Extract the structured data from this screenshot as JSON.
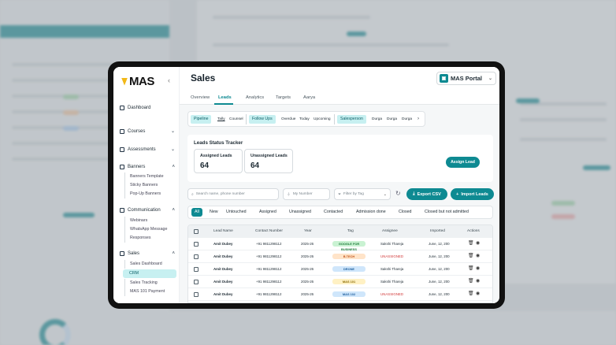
{
  "app": {
    "logo": "MAS",
    "collapse_icon": "chevron-left-icon",
    "page_title": "Sales",
    "portal_label": "MAS Portal"
  },
  "sidebar": {
    "dashboard": "Dashboard",
    "courses": "Courses",
    "assessments": "Assessments",
    "banners": "Banners",
    "banners_items": [
      "Banners Template",
      "Sticky Banners",
      "Pop-Up Banners"
    ],
    "communication": "Communication",
    "communication_items": [
      "Webinars",
      "WhatsApp Message",
      "Responses"
    ],
    "sales": "Sales",
    "sales_items": [
      "Sales Dashboard",
      "CRM",
      "Sales Tracking",
      "MAS 101 Payment"
    ],
    "active_item": "CRM"
  },
  "tabs": [
    "Overview",
    "Leads",
    "Analytics",
    "Targets",
    "Aarya"
  ],
  "active_tab": "Leads",
  "filters": {
    "pipeline": "Pipeline",
    "pipeline_options": [
      "Tally",
      "Counsel"
    ],
    "followups": "Follow Ups",
    "followup_options": [
      "Overdue",
      "Today",
      "Upcoming"
    ],
    "salesperson": "Salesperson",
    "salesperson_options": [
      "Durga",
      "Durga",
      "Durga"
    ]
  },
  "tracker": {
    "title": "Leads Status Tracker",
    "assigned_label": "Assigned Leads",
    "assigned_value": "64",
    "unassigned_label": "Unassigned Leads",
    "unassigned_value": "64",
    "assign_button": "Assign Lead"
  },
  "search": {
    "placeholder": "Search name, phone number",
    "my_number": "My Number",
    "filter_tag": "Filter by  Tag",
    "export": "Export CSV",
    "import": "Import Leads"
  },
  "status_tabs": [
    "All",
    "New",
    "Untouched",
    "Assigned",
    "Unassigned",
    "Contacted",
    "Admission done",
    "Closed",
    "Closed but not admitted"
  ],
  "active_status": "All",
  "table": {
    "headers": [
      "Lead Name",
      "Contact Number",
      "Year",
      "Tag",
      "Assignee",
      "Imported",
      "Actions"
    ],
    "rows": [
      {
        "name": "Amit Dubey",
        "phone": "+91 9811298112",
        "year": "2025-26",
        "tag": "GOOGLE FOR BUSINESS",
        "tag_bg": "#c9f2d2",
        "tag_fg": "#1f7a3a",
        "assignee": "Sakshi Thareja",
        "assignee_color": "#1d2a33",
        "imported": "June, 12, 200"
      },
      {
        "name": "Amit Dubey",
        "phone": "+91 9811298112",
        "year": "2025-26",
        "tag": "B.TECH",
        "tag_bg": "#ffe4c9",
        "tag_fg": "#c2551a",
        "assignee": "UNASSIGNED",
        "assignee_color": "#d23a3a",
        "imported": "June, 12, 200"
      },
      {
        "name": "Amit Dubey",
        "phone": "+91 9811298112",
        "year": "2025-26",
        "tag": "DRONE",
        "tag_bg": "#cfe6fb",
        "tag_fg": "#1f5f9e",
        "assignee": "Sakshi Thareja",
        "assignee_color": "#1d2a33",
        "imported": "June, 12, 200"
      },
      {
        "name": "Amit Dubey",
        "phone": "+91 9811298112",
        "year": "2025-26",
        "tag": "MAS 101",
        "tag_bg": "#fff1c4",
        "tag_fg": "#8a6a00",
        "assignee": "Sakshi Thareja",
        "assignee_color": "#1d2a33",
        "imported": "June, 12, 200"
      },
      {
        "name": "Amit Dubey",
        "phone": "+91 9811298112",
        "year": "2025-26",
        "tag": "MAS 102",
        "tag_bg": "#cfe6fb",
        "tag_fg": "#1f5f9e",
        "assignee": "UNASSIGNED",
        "assignee_color": "#d23a3a",
        "imported": "June, 12, 200"
      }
    ]
  },
  "colors": {
    "accent": "#0e8a92",
    "accent_light": "#c7f0f1",
    "frame": "#111111"
  }
}
